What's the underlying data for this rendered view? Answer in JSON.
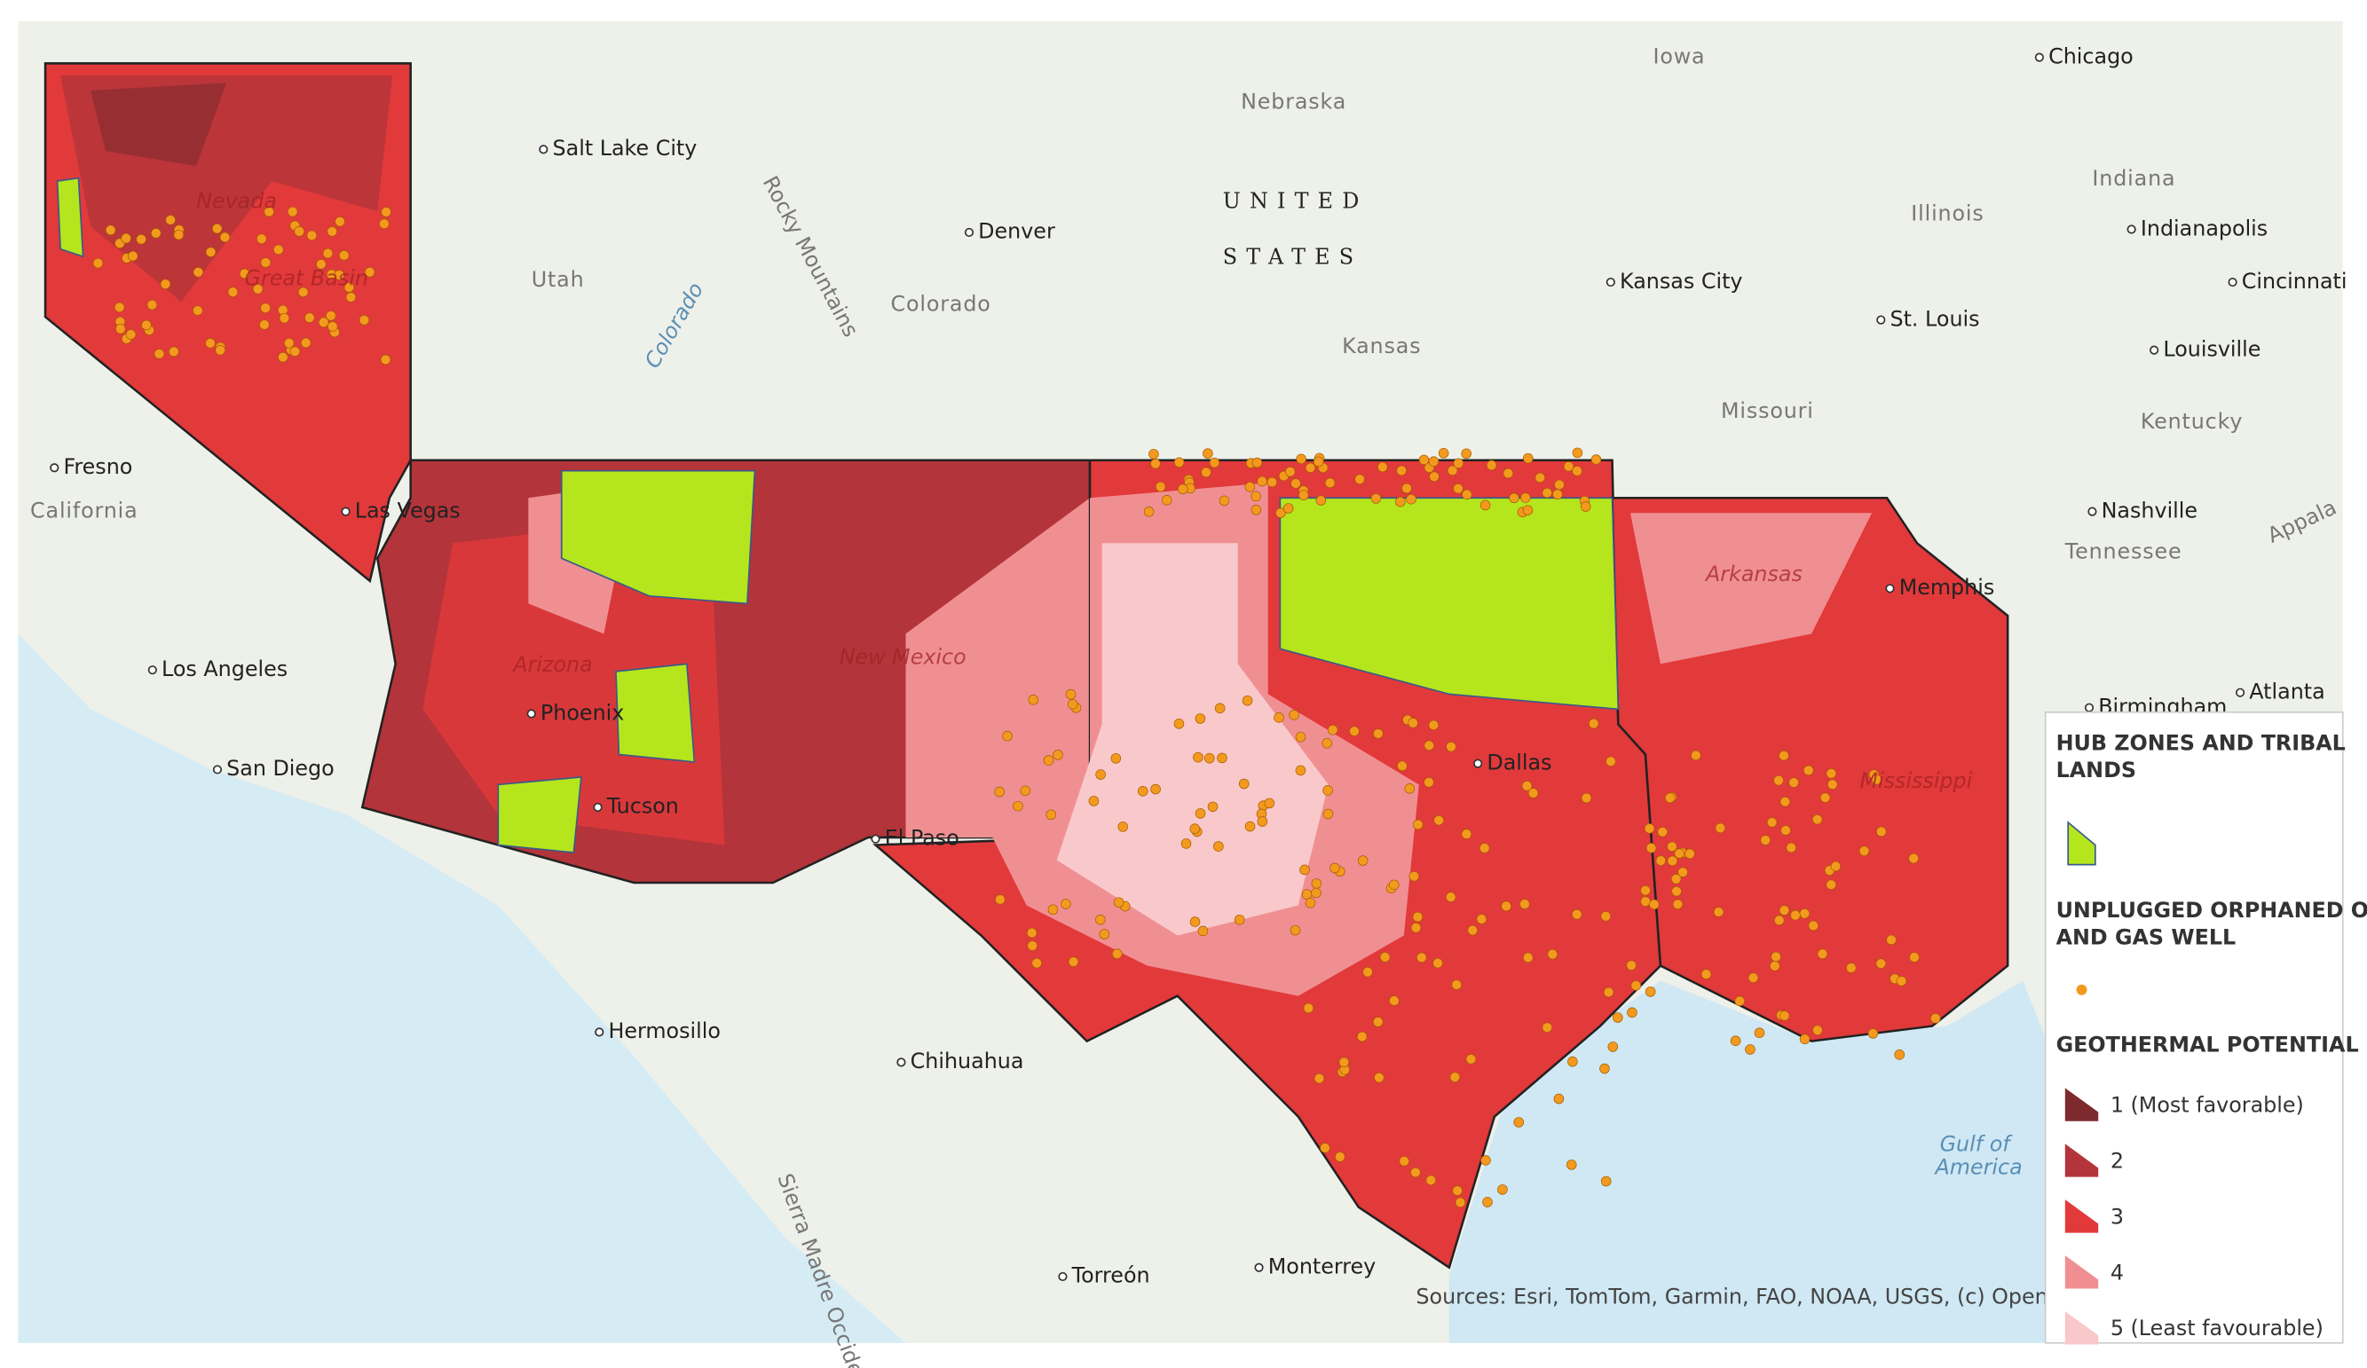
{
  "map": {
    "labels": [
      "Iowa",
      "Chicago",
      "Nebraska",
      "Salt Lake City",
      "UNITED",
      "STATES",
      "Illinois",
      "Indiana",
      "Indianapolis",
      "Denver",
      "Rocky Mountains",
      "Nevada",
      "Utah",
      "Colorado",
      "Kansas City",
      "St. Louis",
      "Cincinnati",
      "Louisville",
      "Kansas",
      "Missouri",
      "Kentucky",
      "Fresno",
      "California",
      "Las Vegas",
      "Nashville",
      "Tennessee",
      "Memphis",
      "Los Angeles",
      "San Diego",
      "Phoenix",
      "Tucson",
      "Dallas",
      "El Paso",
      "Birmingham",
      "Atlanta",
      "Hermosillo",
      "Chihuahua",
      "Gulf of",
      "America",
      "Torreón",
      "Monterrey",
      "Great Basin",
      "Arizona",
      "New Mexico",
      "Mississippi",
      "Arkansas",
      "Appala",
      "Colorado",
      "Sierra Madre Occidental"
    ],
    "attribution": "Sources: Esri, TomTom, Garmin, FAO, NOAA, USGS, (c) OpenStreetMa"
  },
  "legend": {
    "hub_zones": {
      "title": "HUB ZONES AND TRIBAL LANDS",
      "color": "#b5e61d"
    },
    "wells": {
      "title": "UNPLUGGED ORPHANED OIL AND GAS WELL",
      "color": "#f39a1e"
    },
    "geothermal": {
      "title": "GEOTHERMAL POTENTIAL",
      "items": [
        {
          "label": "1 (Most favorable)",
          "color": "#7d2a2e"
        },
        {
          "label": "2",
          "color": "#b3343a"
        },
        {
          "label": "3",
          "color": "#e2393b"
        },
        {
          "label": "4",
          "color": "#f08f92"
        },
        {
          "label": "5 (Least favourable)",
          "color": "#f9c8ca"
        }
      ]
    }
  }
}
